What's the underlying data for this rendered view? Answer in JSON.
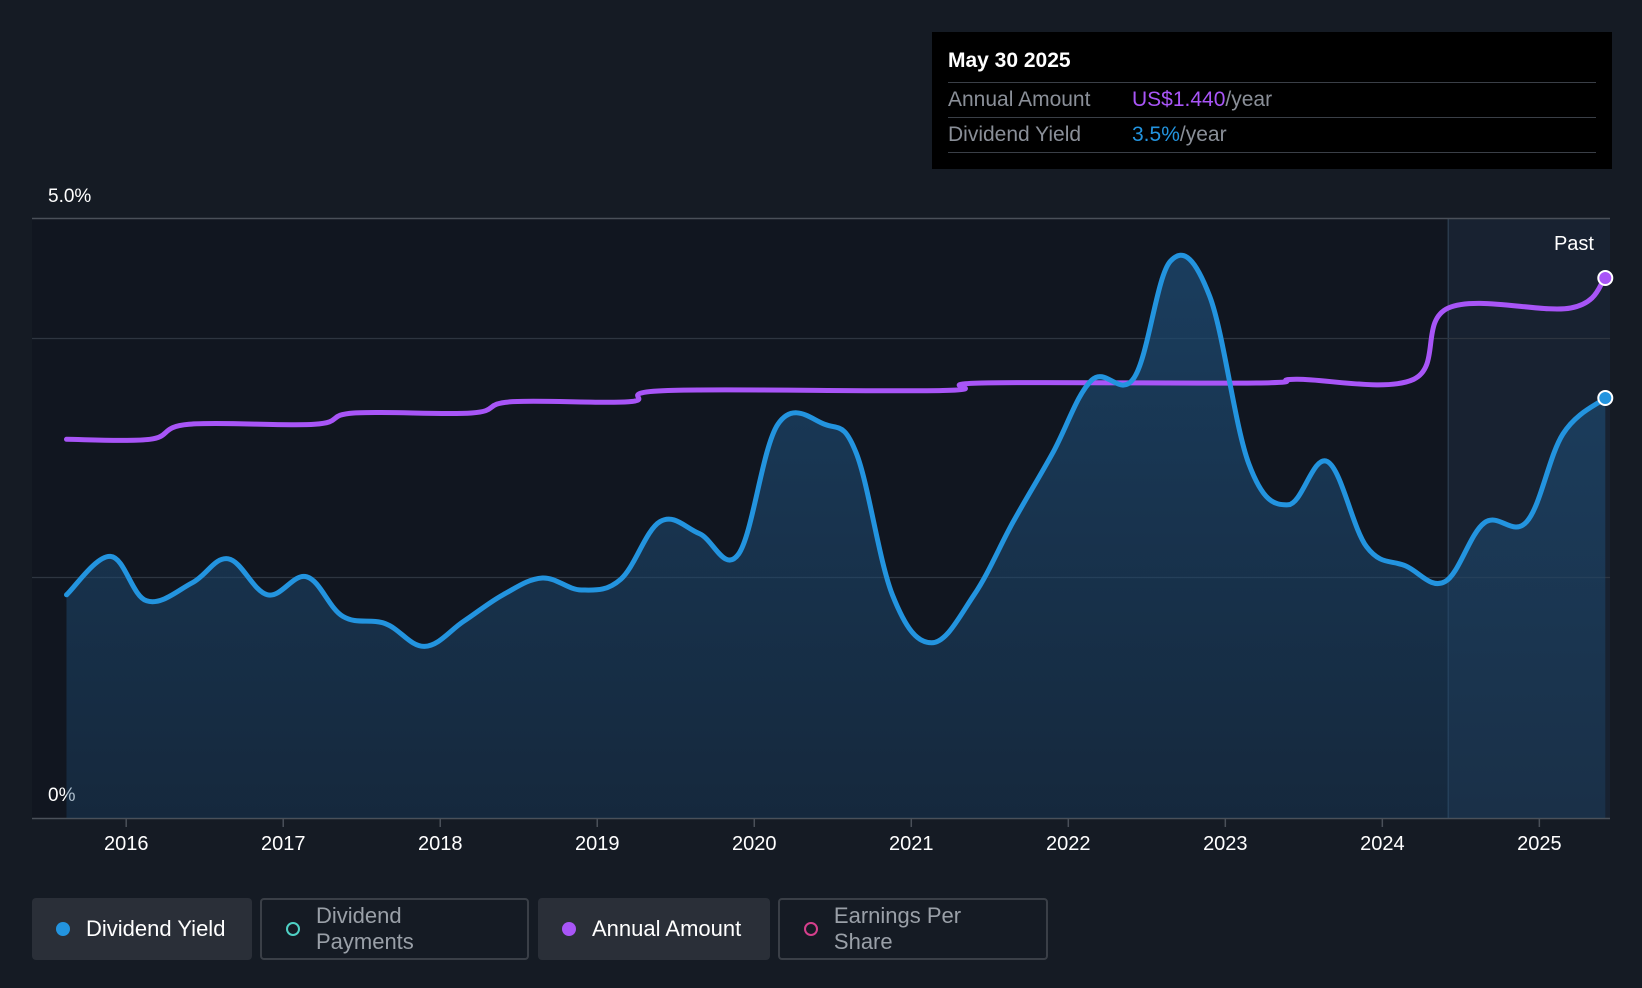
{
  "tooltip": {
    "date": "May 30 2025",
    "rows": [
      {
        "label": "Annual Amount",
        "value": "US$1.440",
        "unit": "/year"
      },
      {
        "label": "Dividend Yield",
        "value": "3.5%",
        "unit": "/year"
      }
    ]
  },
  "chart_data": {
    "type": "line",
    "y_axis_labels": [
      "5.0%",
      "0%"
    ],
    "ylim": [
      0,
      5.0
    ],
    "x_tick_labels": [
      "2016",
      "2017",
      "2018",
      "2019",
      "2020",
      "2021",
      "2022",
      "2023",
      "2024",
      "2025"
    ],
    "xlim": [
      2015.4,
      2025.45
    ],
    "past_label": "Past",
    "past_start": 2024.42,
    "grid": true,
    "colors": {
      "dividend_yield": "#2394df",
      "annual_amount": "#a855f7",
      "background": "#151b24"
    },
    "series": [
      {
        "name": "Dividend Yield",
        "unit": "%",
        "points": [
          [
            2015.62,
            1.86
          ],
          [
            2015.9,
            2.18
          ],
          [
            2016.13,
            1.81
          ],
          [
            2016.42,
            1.96
          ],
          [
            2016.65,
            2.16
          ],
          [
            2016.9,
            1.86
          ],
          [
            2017.15,
            2.01
          ],
          [
            2017.38,
            1.68
          ],
          [
            2017.65,
            1.62
          ],
          [
            2017.9,
            1.43
          ],
          [
            2018.15,
            1.64
          ],
          [
            2018.4,
            1.86
          ],
          [
            2018.65,
            2.0
          ],
          [
            2018.9,
            1.9
          ],
          [
            2019.15,
            1.99
          ],
          [
            2019.4,
            2.47
          ],
          [
            2019.65,
            2.37
          ],
          [
            2019.9,
            2.2
          ],
          [
            2020.15,
            3.28
          ],
          [
            2020.45,
            3.28
          ],
          [
            2020.65,
            3.04
          ],
          [
            2020.88,
            1.86
          ],
          [
            2021.13,
            1.46
          ],
          [
            2021.4,
            1.86
          ],
          [
            2021.65,
            2.47
          ],
          [
            2021.9,
            3.04
          ],
          [
            2022.15,
            3.65
          ],
          [
            2022.42,
            3.67
          ],
          [
            2022.65,
            4.64
          ],
          [
            2022.9,
            4.35
          ],
          [
            2023.15,
            2.95
          ],
          [
            2023.4,
            2.61
          ],
          [
            2023.65,
            2.97
          ],
          [
            2023.9,
            2.26
          ],
          [
            2024.15,
            2.1
          ],
          [
            2024.4,
            1.97
          ],
          [
            2024.65,
            2.46
          ],
          [
            2024.92,
            2.47
          ],
          [
            2025.15,
            3.2
          ],
          [
            2025.42,
            3.5
          ]
        ]
      },
      {
        "name": "Annual Amount",
        "unit": "US$",
        "points": [
          [
            2015.62,
            1.01
          ],
          [
            2016.15,
            1.01
          ],
          [
            2016.4,
            1.05
          ],
          [
            2017.2,
            1.05
          ],
          [
            2017.45,
            1.08
          ],
          [
            2018.2,
            1.08
          ],
          [
            2018.45,
            1.11
          ],
          [
            2019.2,
            1.11
          ],
          [
            2019.45,
            1.14
          ],
          [
            2021.2,
            1.14
          ],
          [
            2021.45,
            1.16
          ],
          [
            2023.2,
            1.16
          ],
          [
            2023.45,
            1.17
          ],
          [
            2024.2,
            1.17
          ],
          [
            2024.42,
            1.36
          ],
          [
            2025.2,
            1.36
          ],
          [
            2025.42,
            1.44
          ]
        ]
      }
    ]
  },
  "legend": [
    {
      "label": "Dividend Yield",
      "state": "active",
      "color": "#2394df",
      "dot": "filled"
    },
    {
      "label": "Dividend Payments",
      "state": "inactive",
      "color": "#4fd1c5",
      "dot": "hollow"
    },
    {
      "label": "Annual Amount",
      "state": "active",
      "color": "#a855f7",
      "dot": "filled"
    },
    {
      "label": "Earnings Per Share",
      "state": "inactive",
      "color": "#d53f8c",
      "dot": "hollow"
    }
  ]
}
